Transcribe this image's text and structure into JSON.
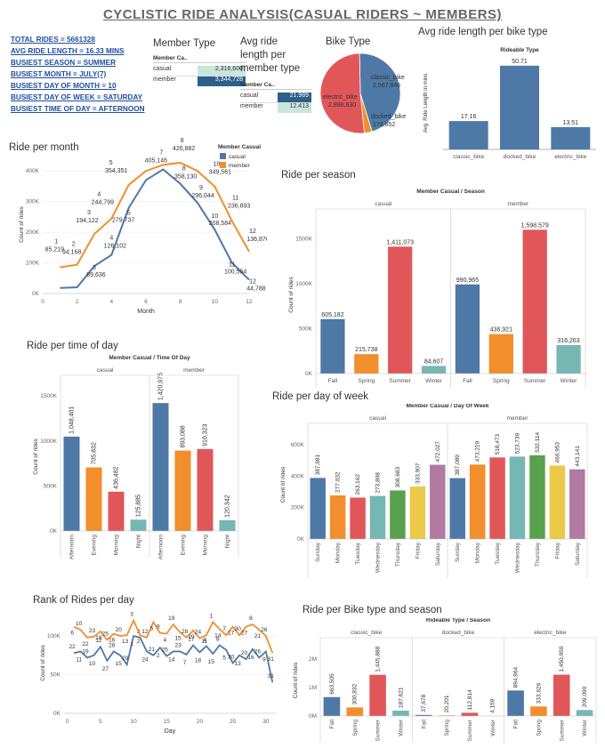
{
  "title": "CYCLISTIC RIDE ANALYSIS(CASUAL  RIDERS ~ MEMBERS)",
  "kpis": [
    "TOTAL RIDES = 5661328",
    "AVG RIDE LENGTH = 16.33 MINS",
    "BUSIEST SEASON = SUMMER",
    "BUSIEST MONTH = JULY(7)",
    "BUSIEST DAY OF MONTH = 10",
    "BUSIEST DAY OF WEEK = SATURDAY",
    "BUSIEST TIME OF DAY = AFTERNOON"
  ],
  "colors": {
    "casual": "#4e79a7",
    "member": "#f28e2b",
    "red": "#e15759",
    "teal": "#76b7b2",
    "green": "#59a14f",
    "yellow": "#edc948",
    "purple": "#b07aa1",
    "member_type_dark": "#2c5f8a",
    "member_type_light": "#c9e6dc"
  },
  "member_type_table": {
    "title": "Member Type",
    "header": "Member Ca..",
    "rows": [
      {
        "label": "casual",
        "value": "2,316,600"
      },
      {
        "label": "member",
        "value": "3,344,728"
      }
    ]
  },
  "avg_ride_table": {
    "title_lines": [
      "Avg ride",
      "length per",
      "member type"
    ],
    "header": "Member Ca..",
    "rows": [
      {
        "label": "casual",
        "value": "21.989"
      },
      {
        "label": "member",
        "value": "12.413"
      }
    ]
  },
  "charts": [
    {
      "id": "bike_type_pie",
      "type": "pie",
      "title": "Bike Type",
      "slices": [
        {
          "name": "classic_bike",
          "value": 2567846,
          "label": "2,567,846",
          "color": "#4e79a7"
        },
        {
          "name": "docked_bike",
          "value": 174852,
          "label": "174,852",
          "color": "#f28e2b"
        },
        {
          "name": "electric_bike",
          "value": 2888630,
          "label": "2,888,630",
          "color": "#e15759"
        }
      ]
    },
    {
      "id": "avg_ride_bike_type",
      "type": "bar",
      "title": "Avg ride length per bike type",
      "header": "Rideable Type",
      "ylabel": "Avg. Ride Length in mins",
      "categories": [
        "classic_bike",
        "docked_bike",
        "electric_bike"
      ],
      "values": [
        17.16,
        50.71,
        13.51
      ],
      "value_labels": [
        "17.16",
        "50.71",
        "13.51"
      ],
      "ylim": [
        0,
        56
      ]
    },
    {
      "id": "ride_per_month",
      "type": "line",
      "title": "Ride per month",
      "xlabel": "Month",
      "ylabel": "Count of rides",
      "xlim": [
        0,
        12
      ],
      "ylim": [
        0,
        450000
      ],
      "xticks": [
        "0",
        "2",
        "4",
        "6",
        "8",
        "10",
        "12"
      ],
      "yticks": [
        "0K",
        "100K",
        "200K",
        "300K",
        "400K"
      ],
      "legend": {
        "title": "Member Casual",
        "items": [
          "casual",
          "member"
        ]
      },
      "series": [
        {
          "name": "casual",
          "x": [
            1,
            2,
            3,
            4,
            5,
            6,
            7,
            8,
            9,
            10,
            11,
            12
          ],
          "values": [
            18117,
            20413,
            89636,
            126102,
            279737,
            369927,
            405146,
            358130,
            296044,
            208584,
            100554,
            44788
          ],
          "labels": [
            "",
            "",
            "89,636",
            "126,102",
            "279,737",
            "",
            "405,146",
            "358,130",
            "296,044",
            "208,584",
            "100,554",
            "44,788"
          ]
        },
        {
          "name": "member",
          "x": [
            1,
            2,
            3,
            4,
            5,
            6,
            7,
            8,
            9,
            10,
            11,
            12
          ],
          "values": [
            85219,
            94168,
            194122,
            244799,
            354351,
            400000,
            420000,
            426882,
            400000,
            349561,
            236893,
            136876
          ],
          "labels": [
            "85,219",
            "94,168",
            "194,122",
            "244,799",
            "354,351",
            "",
            "",
            "426,882",
            "",
            "349,561",
            "236,893",
            "136,876"
          ]
        }
      ]
    },
    {
      "id": "ride_per_season",
      "type": "bar",
      "title": "Ride per season",
      "header": "Member Casual / Season",
      "groups": [
        "casual",
        "member"
      ],
      "ylabel": "Count of rides",
      "categories": [
        "Fall",
        "Spring",
        "Summer",
        "Winter"
      ],
      "ylim": [
        0,
        1750000
      ],
      "yticks": [
        "0K",
        "500K",
        "1000K",
        "1500K"
      ],
      "series": [
        {
          "name": "casual",
          "values": [
            605182,
            215738,
            1411073,
            84607
          ],
          "labels": [
            "605,182",
            "215,738",
            "1,411,073",
            "84,607"
          ]
        },
        {
          "name": "member",
          "values": [
            990965,
            438921,
            1598579,
            316263
          ],
          "labels": [
            "990,965",
            "438,921",
            "1,598,579",
            "316,263"
          ]
        }
      ]
    },
    {
      "id": "ride_per_time_of_day",
      "type": "bar",
      "title": "Ride per time of day",
      "header": "Member Casual  / Time Of Day",
      "groups": [
        "casual",
        "member"
      ],
      "ylabel": "Count of rides",
      "categories": [
        "Afternoon",
        "Evening",
        "Morning",
        "Night"
      ],
      "ylim": [
        0,
        1650000
      ],
      "yticks": [
        "0K",
        "500K",
        "1000K",
        "1500K"
      ],
      "series": [
        {
          "name": "casual",
          "values": [
            1048401,
            705832,
            436482,
            125885
          ],
          "labels": [
            "1,048,401",
            "705,832",
            "436,482",
            "125,885"
          ]
        },
        {
          "name": "member",
          "values": [
            1420975,
            893088,
            910323,
            120342
          ],
          "labels": [
            "1,420,975",
            "893,088",
            "910,323",
            "120,342"
          ]
        }
      ]
    },
    {
      "id": "ride_per_day_of_week",
      "type": "bar",
      "title": "Ride per day of week",
      "header": "Member Casual  / Day Of Week",
      "groups": [
        "casual",
        "member"
      ],
      "ylabel": "Count of rides",
      "categories": [
        "Sunday",
        "Monday",
        "Tuesday",
        "Wednesday",
        "Thursday",
        "Friday",
        "Saturday"
      ],
      "ylim": [
        0,
        690000
      ],
      "yticks": [
        "0K",
        "200K",
        "400K",
        "600K"
      ],
      "series": [
        {
          "name": "casual",
          "values": [
            387981,
            277032,
            263162,
            273808,
            308683,
            333907,
            472027
          ],
          "labels": [
            "387,981",
            "277,032",
            "263,162",
            "273,808",
            "308,683",
            "333,907",
            "472,027"
          ]
        },
        {
          "name": "member",
          "values": [
            387089,
            473219,
            518473,
            523739,
            532114,
            466953,
            443141
          ],
          "labels": [
            "387,089",
            "473,219",
            "518,473",
            "523,739",
            "532,114",
            "466,953",
            "443,141"
          ]
        }
      ]
    },
    {
      "id": "rank_of_rides_per_day",
      "type": "line",
      "title": "Rank of Rides per day",
      "xlabel": "Day",
      "ylabel": "Count of rides",
      "xlim": [
        -0.5,
        31.5
      ],
      "ylim": [
        0,
        130000
      ],
      "xticks": [
        "0",
        "5",
        "10",
        "15",
        "20",
        "25",
        "30"
      ],
      "yticks": [
        "0K",
        "50K",
        "100K"
      ],
      "series": [
        {
          "name": "casual",
          "x": [
            1,
            2,
            3,
            4,
            5,
            6,
            7,
            8,
            9,
            10,
            11,
            12,
            13,
            14,
            15,
            16,
            17,
            18,
            19,
            20,
            21,
            22,
            23,
            24,
            25,
            26,
            27,
            28,
            29,
            30,
            31
          ],
          "values": [
            78000,
            80000,
            72000,
            75000,
            86000,
            68000,
            80000,
            75000,
            63000,
            100000,
            98000,
            80000,
            75000,
            85000,
            74000,
            80000,
            80000,
            76000,
            88000,
            79000,
            87000,
            77000,
            88000,
            82000,
            65000,
            75000,
            70000,
            83000,
            72000,
            80000,
            40000
          ],
          "labels": [
            "22",
            "11",
            "19",
            "10",
            "12",
            "27",
            "28",
            "15",
            "29",
            "1",
            "3",
            "24",
            "21",
            "2",
            "25",
            "14",
            "23",
            "7",
            "17",
            "18",
            "4",
            "15",
            "8",
            "5",
            "30",
            "13",
            "20",
            "16",
            "26",
            "9",
            "31"
          ]
        },
        {
          "name": "member",
          "x": [
            1,
            2,
            3,
            4,
            5,
            6,
            7,
            8,
            9,
            10,
            11,
            12,
            13,
            14,
            15,
            16,
            17,
            18,
            19,
            20,
            21,
            22,
            23,
            24,
            25,
            26,
            27,
            28,
            29,
            30,
            31
          ],
          "values": [
            112000,
            108000,
            98000,
            99000,
            106000,
            95000,
            103000,
            100000,
            101000,
            120000,
            101000,
            98000,
            118000,
            104000,
            103000,
            115000,
            105000,
            98000,
            107000,
            97000,
            101000,
            118000,
            109000,
            101000,
            112000,
            101000,
            112000,
            115000,
            108000,
            100000,
            78000
          ],
          "labels": [
            "6",
            "10",
            "22",
            "23",
            "18",
            "25",
            "16",
            "20",
            "13",
            "3",
            "2",
            "12",
            "5",
            "9",
            "4",
            "19",
            "15",
            "28",
            "29",
            "24",
            "11",
            "1",
            "14",
            "7",
            "17",
            "30",
            "27",
            "8",
            "21",
            "26",
            "31"
          ]
        }
      ]
    },
    {
      "id": "ride_per_bike_type_season",
      "type": "bar",
      "title": "Ride per Bike type and season",
      "header": "Rideable Type / Season",
      "groups": [
        "classic_bike",
        "docked_bike",
        "electric_bike"
      ],
      "ylabel": "Count of rides",
      "categories": [
        "Fall",
        "Spring",
        "Summer",
        "Winter"
      ],
      "ylim": [
        0,
        2500000
      ],
      "yticks": [
        "0M",
        "1M",
        "2M"
      ],
      "series": [
        {
          "name": "classic_bike",
          "values": [
            663505,
            300832,
            1445888,
            187621
          ],
          "labels": [
            "663,505",
            "300,832",
            "1,445,888",
            "187,621"
          ]
        },
        {
          "name": "docked_bike",
          "values": [
            37678,
            20201,
            112814,
            4159
          ],
          "labels": [
            "37,678",
            "20,201",
            "112,814",
            "4,159"
          ]
        },
        {
          "name": "electric_bike",
          "values": [
            894964,
            333626,
            1450950,
            209090
          ],
          "labels": [
            "894,964",
            "333,626",
            "1,450,950",
            "209,090"
          ]
        }
      ]
    }
  ]
}
